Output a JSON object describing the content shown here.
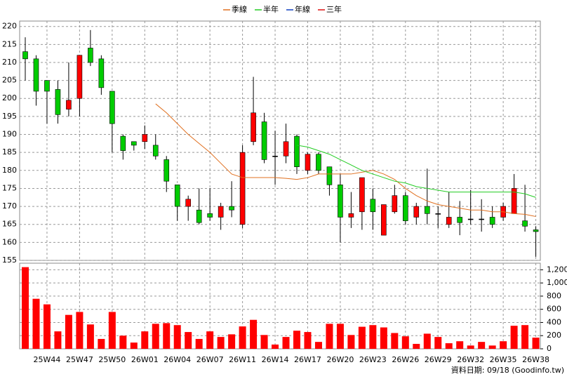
{
  "chart_data": {
    "type": "candlestick",
    "categories": [
      null,
      null,
      "25W44",
      null,
      null,
      "25W47",
      null,
      null,
      "25W50",
      null,
      null,
      "26W01",
      null,
      null,
      "26W04",
      null,
      null,
      "26W07",
      null,
      null,
      "26W11",
      null,
      null,
      "26W14",
      null,
      null,
      "26W17",
      null,
      null,
      "26W20",
      null,
      null,
      "26W23",
      null,
      null,
      "26W26",
      null,
      null,
      "26W29",
      null,
      null,
      "26W32",
      null,
      null,
      "26W35",
      null,
      null,
      "26W38"
    ],
    "open": [
      213,
      211,
      205,
      202.5,
      197,
      200,
      214,
      211,
      202,
      189.5,
      188,
      188,
      187,
      183,
      176,
      170,
      169,
      168,
      167,
      170,
      165,
      188,
      193.5,
      184,
      184,
      189.5,
      180,
      184.5,
      181,
      176,
      167,
      168.5,
      172,
      162,
      168.5,
      173,
      167,
      170,
      168,
      165,
      167,
      166.5,
      166.5,
      167,
      167,
      168,
      166,
      163.5
    ],
    "high": [
      217,
      212,
      205,
      205,
      210,
      212,
      219,
      212,
      202,
      190,
      188,
      192.5,
      190,
      184,
      176,
      173,
      175,
      175,
      171,
      177,
      187,
      206,
      196,
      191,
      193,
      190,
      185,
      185,
      181,
      179,
      174,
      178,
      175,
      170.5,
      176,
      174,
      171,
      180.5,
      170,
      174,
      171.5,
      174.5,
      172,
      170,
      171,
      179,
      176,
      164.5
    ],
    "low": [
      205,
      198,
      193,
      193,
      195,
      195,
      209,
      201,
      185,
      183,
      185.5,
      186,
      183,
      174,
      166,
      166,
      165,
      166,
      163.5,
      167,
      164,
      187,
      182,
      176,
      182,
      179,
      179,
      179,
      173,
      160,
      164,
      163.5,
      163.5,
      162,
      168,
      165,
      165,
      165,
      164,
      164,
      162,
      165,
      163,
      164,
      166,
      168,
      163,
      156
    ],
    "close": [
      211,
      202,
      202,
      195.5,
      199.5,
      212,
      210,
      203,
      193,
      185.5,
      187,
      190,
      184,
      177,
      170,
      172,
      165.5,
      167,
      170,
      169,
      185,
      196,
      183,
      184,
      188,
      181,
      184.5,
      180,
      176,
      167,
      168,
      178,
      168.5,
      170.5,
      173,
      166,
      170,
      168,
      168,
      167,
      165.5,
      166.5,
      166.5,
      165,
      170,
      175,
      164.5,
      163
    ],
    "volume": [
      1240,
      760,
      675,
      265,
      515,
      560,
      370,
      150,
      560,
      200,
      95,
      265,
      380,
      390,
      360,
      255,
      150,
      265,
      180,
      220,
      340,
      440,
      210,
      65,
      180,
      275,
      255,
      105,
      380,
      380,
      210,
      335,
      360,
      325,
      240,
      190,
      75,
      230,
      180,
      85,
      115,
      50,
      105,
      50,
      115,
      350,
      360,
      170
    ],
    "up_color": "#ff0000",
    "down_color": "#00cc00",
    "volume_color": "#ff0000",
    "series": [
      {
        "name": "季線",
        "color": "#e07020",
        "values": [
          null,
          null,
          null,
          null,
          null,
          null,
          null,
          null,
          null,
          null,
          null,
          null,
          198.5,
          196,
          193,
          190,
          187.5,
          185,
          182,
          179,
          178,
          178,
          178,
          178,
          177.8,
          177.5,
          178,
          179,
          179,
          179,
          179,
          179.5,
          180,
          179,
          177.5,
          175,
          173,
          171.5,
          170.5,
          170,
          169.5,
          169,
          169,
          168.5,
          168.5,
          168,
          167.8,
          167.2
        ]
      },
      {
        "name": "半年",
        "color": "#22cc22",
        "values": [
          null,
          null,
          null,
          null,
          null,
          null,
          null,
          null,
          null,
          null,
          null,
          null,
          null,
          null,
          null,
          null,
          null,
          null,
          null,
          null,
          null,
          null,
          null,
          null,
          null,
          187,
          186.5,
          185.5,
          184.5,
          183,
          181.5,
          180,
          179,
          178,
          177,
          176.5,
          175.5,
          175,
          174.5,
          174,
          174,
          174,
          174,
          174,
          174,
          174,
          173.5,
          172.5
        ]
      },
      {
        "name": "年線",
        "color": "#1040c0",
        "values": [
          null,
          null,
          null,
          null,
          null,
          null,
          null,
          null,
          null,
          null,
          null,
          null,
          null,
          null,
          null,
          null,
          null,
          null,
          null,
          null,
          null,
          null,
          null,
          null,
          null,
          null,
          null,
          null,
          null,
          null,
          null,
          null,
          null,
          null,
          null,
          null,
          null,
          null,
          null,
          null,
          null,
          null,
          null,
          null,
          null,
          null,
          null,
          null
        ]
      },
      {
        "name": "三年",
        "color": "#dd1010",
        "values": [
          null,
          null,
          null,
          null,
          null,
          null,
          null,
          null,
          null,
          null,
          null,
          null,
          null,
          null,
          null,
          null,
          null,
          null,
          null,
          null,
          null,
          null,
          null,
          null,
          null,
          null,
          null,
          null,
          null,
          null,
          null,
          null,
          null,
          null,
          null,
          null,
          null,
          null,
          null,
          null,
          null,
          null,
          null,
          null,
          null,
          null,
          null,
          null
        ]
      }
    ],
    "ylim": [
      155,
      221.5
    ],
    "yticks": [
      155,
      160,
      165,
      170,
      175,
      180,
      185,
      190,
      195,
      200,
      205,
      210,
      215,
      220
    ],
    "y2lim": [
      0,
      1300
    ],
    "y2ticks": [
      0,
      200,
      400,
      600,
      800,
      {
        "value": 1000,
        "label": "1,000"
      },
      {
        "value": 1200,
        "label": "1,200"
      }
    ],
    "grid": true,
    "note": "資料日期: 09/18  (Goodinfo.tw)"
  }
}
